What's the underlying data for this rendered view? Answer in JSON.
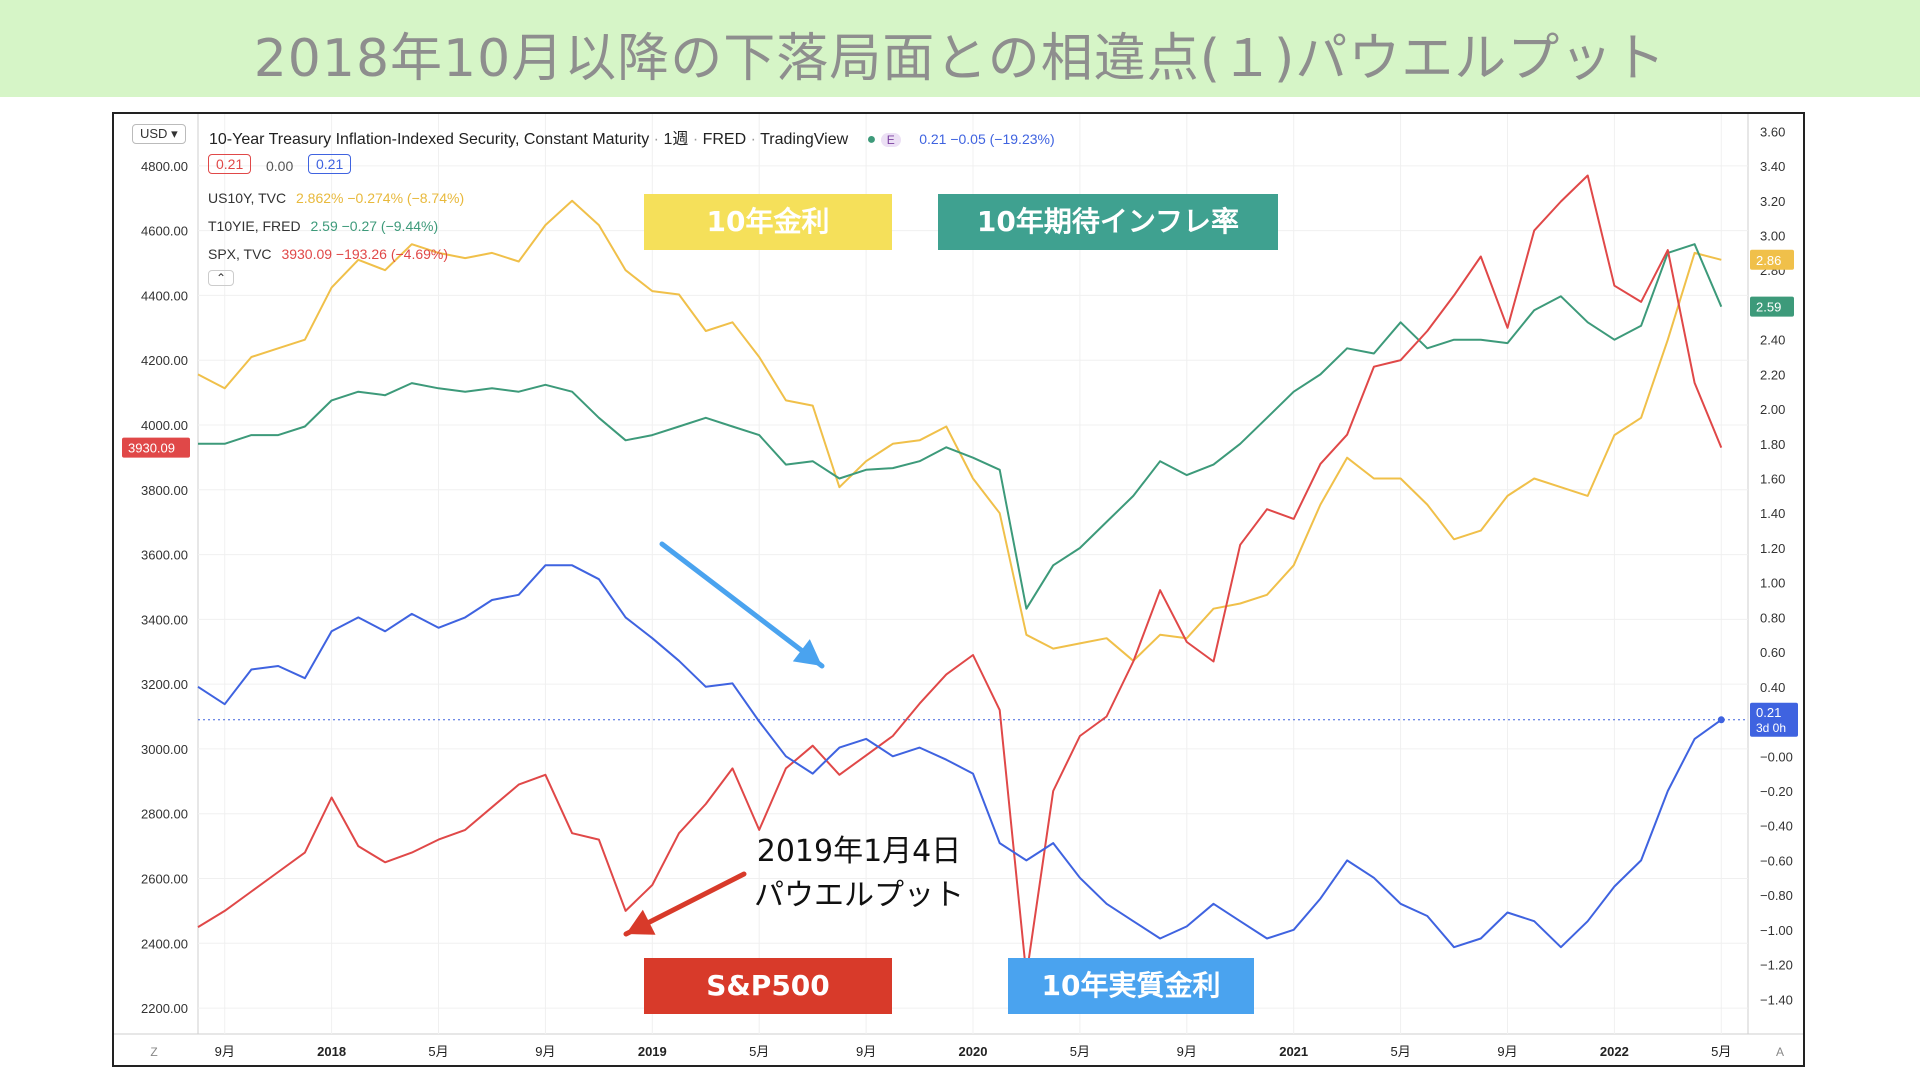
{
  "page": {
    "title": "2018年10月以降の下落局面との相違点(１)パウエルプット"
  },
  "header": {
    "currency": "USD",
    "instrument": "10-Year Treasury Inflation-Indexed Security, Constant Maturity",
    "interval": "1週",
    "source": "FRED",
    "platform": "TradingView",
    "e_badge": "E",
    "quote": "0.21  −0.05 (−19.23%)",
    "box_red": "0.21",
    "box_mid": "0.00",
    "box_blue": "0.21",
    "collapse_icon": "chevron-up"
  },
  "legend": [
    {
      "symbol": "US10Y, TVC",
      "value": "2.862%  −0.274% (−8.74%)",
      "color": "#f0c04a"
    },
    {
      "symbol": "T10YIE, FRED",
      "value": "2.59  −0.27 (−9.44%)",
      "color": "#3d9a7a"
    },
    {
      "symbol": "SPX, TVC",
      "value": "3930.09  −193.26 (−4.69%)",
      "color": "#e04848"
    }
  ],
  "price_tags": {
    "spx_left": "3930.09",
    "us10y_right": "2.86",
    "t10yie_right": "2.59",
    "real_right": "0.21",
    "real_right_sub": "3d 0h"
  },
  "annotation_boxes": {
    "us10y": "10年金利",
    "t10yie": "10年期待インフレ率",
    "spx": "S&P500",
    "real": "10年実質金利"
  },
  "annotation_note": [
    "2019年1月4日",
    "パウエルプット"
  ],
  "colors": {
    "us10y": "#f0c04a",
    "t10yie": "#3d9a7a",
    "spx": "#e04848",
    "real": "#3f63e0",
    "box_yellow": "#f5e05a",
    "box_teal": "#3fa190",
    "box_red": "#d83a2a",
    "box_blue": "#4aa3ef"
  },
  "chart_data": {
    "type": "line",
    "x_axis": {
      "tick_labels": [
        "9月",
        "2018",
        "5月",
        "9月",
        "2019",
        "5月",
        "9月",
        "2020",
        "5月",
        "9月",
        "2021",
        "5月",
        "9月",
        "2022",
        "5月"
      ],
      "tick_dates": [
        "2017-09",
        "2018-01",
        "2018-05",
        "2018-09",
        "2019-01",
        "2019-05",
        "2019-09",
        "2020-01",
        "2020-05",
        "2020-09",
        "2021-01",
        "2021-05",
        "2021-09",
        "2022-01",
        "2022-05"
      ],
      "range": [
        "2017-08",
        "2022-06"
      ],
      "left_corner": "Z",
      "right_corner": "A"
    },
    "y_left": {
      "series": "SPX",
      "range": [
        2120,
        4960
      ],
      "ticks": [
        "4800.00",
        "4600.00",
        "4400.00",
        "4200.00",
        "4000.00",
        "3800.00",
        "3600.00",
        "3400.00",
        "3200.00",
        "3000.00",
        "2800.00",
        "2600.00",
        "2400.00",
        "2200.00"
      ]
    },
    "y_right": {
      "series": [
        "US10Y",
        "T10YIE",
        "10Y Real"
      ],
      "range": [
        -1.6,
        3.7
      ],
      "ticks": [
        "3.60",
        "3.40",
        "3.20",
        "3.00",
        "2.80",
        "2.60",
        "2.40",
        "2.20",
        "2.00",
        "1.80",
        "1.60",
        "1.40",
        "1.20",
        "1.00",
        "0.80",
        "0.60",
        "0.40",
        "−0.00",
        "−0.20",
        "−0.40",
        "−0.60",
        "−0.80",
        "−1.00",
        "−1.20",
        "−1.40"
      ]
    },
    "grid": true,
    "x_dates": [
      "2017-08",
      "2017-09",
      "2017-10",
      "2017-11",
      "2017-12",
      "2018-01",
      "2018-02",
      "2018-03",
      "2018-04",
      "2018-05",
      "2018-06",
      "2018-07",
      "2018-08",
      "2018-09",
      "2018-10",
      "2018-11",
      "2018-12",
      "2019-01",
      "2019-02",
      "2019-03",
      "2019-04",
      "2019-05",
      "2019-06",
      "2019-07",
      "2019-08",
      "2019-09",
      "2019-10",
      "2019-11",
      "2019-12",
      "2020-01",
      "2020-02",
      "2020-03",
      "2020-04",
      "2020-05",
      "2020-06",
      "2020-07",
      "2020-08",
      "2020-09",
      "2020-10",
      "2020-11",
      "2020-12",
      "2021-01",
      "2021-02",
      "2021-03",
      "2021-04",
      "2021-05",
      "2021-06",
      "2021-07",
      "2021-08",
      "2021-09",
      "2021-10",
      "2021-11",
      "2021-12",
      "2022-01",
      "2022-02",
      "2022-03",
      "2022-04",
      "2022-05"
    ],
    "series": [
      {
        "name": "US10Y, TVC",
        "color": "#f0c04a",
        "axis": "right",
        "values": [
          2.2,
          2.12,
          2.3,
          2.35,
          2.4,
          2.7,
          2.86,
          2.8,
          2.95,
          2.9,
          2.87,
          2.9,
          2.85,
          3.06,
          3.2,
          3.06,
          2.8,
          2.68,
          2.66,
          2.45,
          2.5,
          2.3,
          2.05,
          2.02,
          1.55,
          1.7,
          1.8,
          1.82,
          1.9,
          1.6,
          1.4,
          0.7,
          0.62,
          0.65,
          0.68,
          0.55,
          0.7,
          0.68,
          0.85,
          0.88,
          0.93,
          1.1,
          1.45,
          1.72,
          1.6,
          1.6,
          1.45,
          1.25,
          1.3,
          1.5,
          1.6,
          1.55,
          1.5,
          1.85,
          1.95,
          2.4,
          2.9,
          2.86
        ]
      },
      {
        "name": "T10YIE, FRED",
        "color": "#3d9a7a",
        "axis": "right",
        "values": [
          1.8,
          1.8,
          1.85,
          1.85,
          1.9,
          2.05,
          2.1,
          2.08,
          2.15,
          2.12,
          2.1,
          2.12,
          2.1,
          2.14,
          2.1,
          1.95,
          1.82,
          1.85,
          1.9,
          1.95,
          1.9,
          1.85,
          1.68,
          1.7,
          1.6,
          1.65,
          1.66,
          1.7,
          1.78,
          1.72,
          1.65,
          0.85,
          1.1,
          1.2,
          1.35,
          1.5,
          1.7,
          1.62,
          1.68,
          1.8,
          1.95,
          2.1,
          2.2,
          2.35,
          2.32,
          2.5,
          2.35,
          2.4,
          2.4,
          2.38,
          2.57,
          2.65,
          2.5,
          2.4,
          2.48,
          2.9,
          2.95,
          2.59
        ]
      },
      {
        "name": "SPX, TVC",
        "color": "#e04848",
        "axis": "left",
        "values": [
          2450,
          2500,
          2560,
          2620,
          2680,
          2850,
          2700,
          2650,
          2680,
          2720,
          2750,
          2820,
          2890,
          2920,
          2740,
          2720,
          2500,
          2580,
          2740,
          2830,
          2940,
          2750,
          2940,
          3010,
          2920,
          2980,
          3040,
          3140,
          3230,
          3290,
          3120,
          2300,
          2870,
          3040,
          3100,
          3270,
          3490,
          3330,
          3270,
          3630,
          3740,
          3710,
          3880,
          3970,
          4180,
          4200,
          4290,
          4400,
          4520,
          4300,
          4600,
          4690,
          4770,
          4430,
          4380,
          4540,
          4130,
          3930.09
        ]
      },
      {
        "name": "10Y Real",
        "color": "#3f63e0",
        "axis": "right",
        "values": [
          0.4,
          0.3,
          0.5,
          0.52,
          0.45,
          0.72,
          0.8,
          0.72,
          0.82,
          0.74,
          0.8,
          0.9,
          0.93,
          1.1,
          1.1,
          1.02,
          0.8,
          0.68,
          0.55,
          0.4,
          0.42,
          0.2,
          0.0,
          -0.1,
          0.05,
          0.1,
          0.0,
          0.05,
          -0.02,
          -0.1,
          -0.5,
          -0.6,
          -0.5,
          -0.7,
          -0.85,
          -0.95,
          -1.05,
          -0.98,
          -0.85,
          -0.95,
          -1.05,
          -1.0,
          -0.82,
          -0.6,
          -0.7,
          -0.85,
          -0.92,
          -1.1,
          -1.05,
          -0.9,
          -0.95,
          -1.1,
          -0.95,
          -0.75,
          -0.6,
          -0.2,
          0.1,
          0.21
        ]
      }
    ]
  }
}
